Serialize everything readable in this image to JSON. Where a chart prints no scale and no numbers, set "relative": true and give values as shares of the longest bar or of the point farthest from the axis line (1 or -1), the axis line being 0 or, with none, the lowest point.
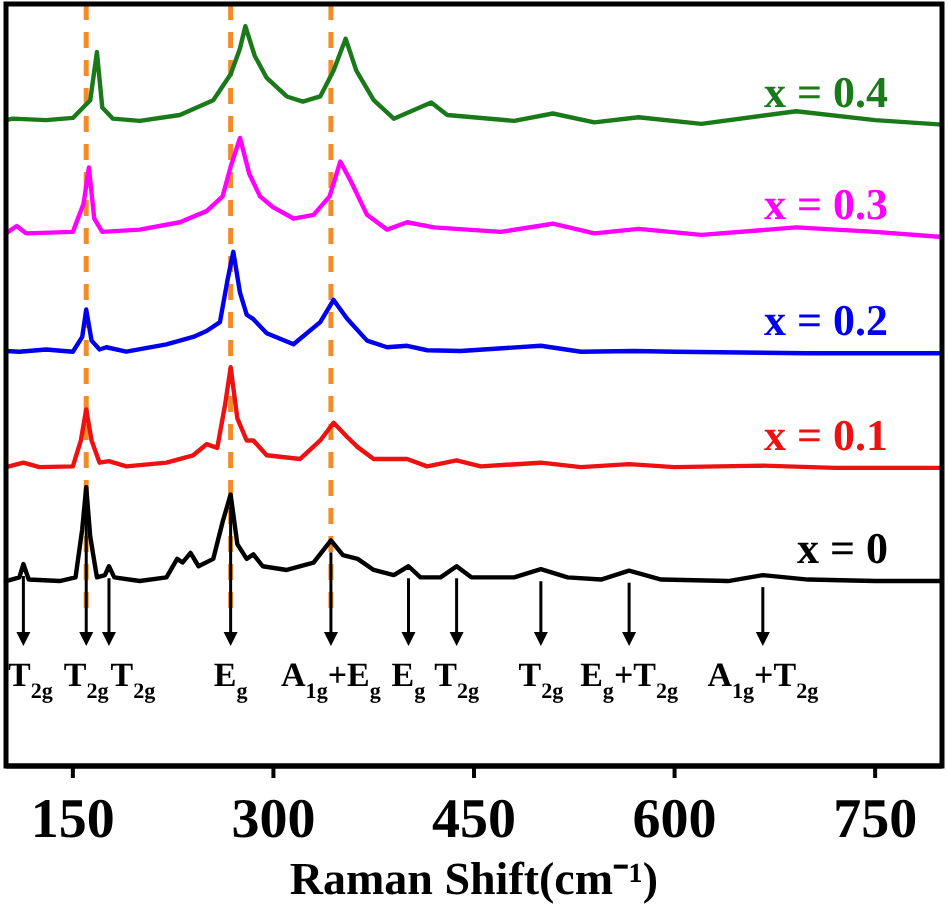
{
  "chart_data": {
    "type": "line",
    "relative": true,
    "xlabel": "Raman Shift(cm⁻¹)",
    "xlim": [
      100,
      800
    ],
    "xticks": [
      150,
      300,
      450,
      600,
      750
    ],
    "series": [
      {
        "name": "x = 0",
        "color": "#000000",
        "x": [
          100,
          110,
          113,
          117,
          140,
          152,
          157,
          160,
          163,
          168,
          174,
          177,
          181,
          200,
          220,
          228,
          232,
          238,
          244,
          255,
          262,
          268,
          273,
          280,
          285,
          292,
          310,
          330,
          343,
          352,
          363,
          375,
          390,
          401,
          410,
          425,
          437,
          448,
          480,
          500,
          520,
          545,
          566,
          590,
          640,
          666,
          700,
          750,
          800
        ],
        "values": [
          0.25,
          0.255,
          0.273,
          0.252,
          0.25,
          0.255,
          0.32,
          0.377,
          0.31,
          0.255,
          0.258,
          0.27,
          0.255,
          0.25,
          0.255,
          0.28,
          0.275,
          0.288,
          0.27,
          0.28,
          0.33,
          0.367,
          0.3,
          0.28,
          0.286,
          0.27,
          0.265,
          0.275,
          0.305,
          0.285,
          0.28,
          0.265,
          0.258,
          0.27,
          0.255,
          0.255,
          0.27,
          0.255,
          0.255,
          0.266,
          0.255,
          0.252,
          0.264,
          0.252,
          0.25,
          0.258,
          0.252,
          0.25,
          0.25
        ]
      },
      {
        "name": "x = 0.1",
        "color": "#ee1111",
        "x": [
          100,
          113,
          125,
          150,
          156,
          160,
          164,
          170,
          177,
          190,
          220,
          240,
          250,
          258,
          264,
          268,
          273,
          280,
          285,
          295,
          320,
          335,
          345,
          355,
          363,
          375,
          400,
          415,
          437,
          455,
          500,
          530,
          566,
          600,
          666,
          720,
          800
        ],
        "values": [
          0.404,
          0.41,
          0.404,
          0.405,
          0.44,
          0.482,
          0.44,
          0.41,
          0.412,
          0.405,
          0.41,
          0.42,
          0.435,
          0.43,
          0.49,
          0.539,
          0.47,
          0.44,
          0.44,
          0.42,
          0.415,
          0.44,
          0.464,
          0.445,
          0.431,
          0.415,
          0.415,
          0.405,
          0.413,
          0.405,
          0.41,
          0.404,
          0.408,
          0.404,
          0.406,
          0.403,
          0.403
        ]
      },
      {
        "name": "x = 0.2",
        "color": "#0000ee",
        "x": [
          100,
          110,
          130,
          150,
          157,
          160,
          164,
          170,
          175,
          190,
          220,
          240,
          250,
          260,
          266,
          270,
          275,
          280,
          285,
          295,
          315,
          335,
          345,
          355,
          370,
          385,
          400,
          415,
          440,
          500,
          530,
          570,
          600,
          700,
          800
        ],
        "values": [
          0.561,
          0.56,
          0.563,
          0.56,
          0.58,
          0.617,
          0.575,
          0.563,
          0.566,
          0.56,
          0.57,
          0.58,
          0.588,
          0.6,
          0.66,
          0.695,
          0.64,
          0.61,
          0.604,
          0.585,
          0.57,
          0.6,
          0.63,
          0.605,
          0.575,
          0.566,
          0.568,
          0.562,
          0.561,
          0.568,
          0.56,
          0.561,
          0.56,
          0.558,
          0.558
        ]
      },
      {
        "name": "x = 0.3",
        "color": "#ff00ff",
        "x": [
          100,
          108,
          115,
          150,
          158,
          162,
          166,
          172,
          200,
          230,
          250,
          262,
          268,
          275,
          282,
          290,
          300,
          315,
          330,
          342,
          350,
          358,
          370,
          385,
          400,
          420,
          470,
          509,
          540,
          573,
          620,
          691,
          750,
          800
        ],
        "values": [
          0.72,
          0.73,
          0.72,
          0.722,
          0.76,
          0.809,
          0.74,
          0.722,
          0.725,
          0.735,
          0.75,
          0.77,
          0.81,
          0.849,
          0.8,
          0.77,
          0.755,
          0.74,
          0.745,
          0.77,
          0.817,
          0.79,
          0.745,
          0.725,
          0.735,
          0.728,
          0.722,
          0.733,
          0.72,
          0.726,
          0.718,
          0.728,
          0.722,
          0.715
        ]
      },
      {
        "name": "x = 0.4",
        "color": "#1a7a1a",
        "x": [
          100,
          105,
          130,
          150,
          163,
          168,
          172,
          180,
          200,
          230,
          255,
          268,
          275,
          279,
          286,
          295,
          310,
          322,
          335,
          345,
          354,
          362,
          375,
          390,
          418,
          430,
          480,
          509,
          540,
          573,
          620,
          691,
          750,
          800
        ],
        "values": [
          0.873,
          0.875,
          0.873,
          0.876,
          0.9,
          0.965,
          0.89,
          0.875,
          0.872,
          0.88,
          0.9,
          0.935,
          0.97,
          1.0,
          0.96,
          0.93,
          0.905,
          0.898,
          0.905,
          0.94,
          0.983,
          0.94,
          0.9,
          0.875,
          0.897,
          0.88,
          0.872,
          0.882,
          0.87,
          0.877,
          0.868,
          0.885,
          0.873,
          0.867
        ]
      }
    ],
    "ref_lines": [
      {
        "axis": "x",
        "value": 160,
        "color": "#f28c28",
        "line_style": "dashed"
      },
      {
        "axis": "x",
        "value": 268,
        "color": "#f28c28",
        "line_style": "dashed"
      },
      {
        "axis": "x",
        "value": 343,
        "color": "#f28c28",
        "line_style": "dashed"
      }
    ],
    "annotations": [
      {
        "text": "T$_{2g}$",
        "x": 113,
        "y": 0.273
      },
      {
        "text": "T$_{2g}$",
        "x": 160,
        "y": 0.377
      },
      {
        "text": "T$_{2g}$",
        "x": 177,
        "y": 0.27
      },
      {
        "text": "E$_{g}$",
        "x": 268,
        "y": 0.367
      },
      {
        "text": "A$_{1g}$+E$_{g}$",
        "x": 343,
        "y": 0.305
      },
      {
        "text": "E$_{g}$",
        "x": 401,
        "y": 0.27
      },
      {
        "text": "T$_{2g}$",
        "x": 437,
        "y": 0.27
      },
      {
        "text": "T$_{2g}$",
        "x": 500,
        "y": 0.266
      },
      {
        "text": "E$_{g}$+T$_{2g}$",
        "x": 566,
        "y": 0.264
      },
      {
        "text": "A$_{1g}$+T$_{2g}$",
        "x": 666,
        "y": 0.258
      }
    ]
  }
}
